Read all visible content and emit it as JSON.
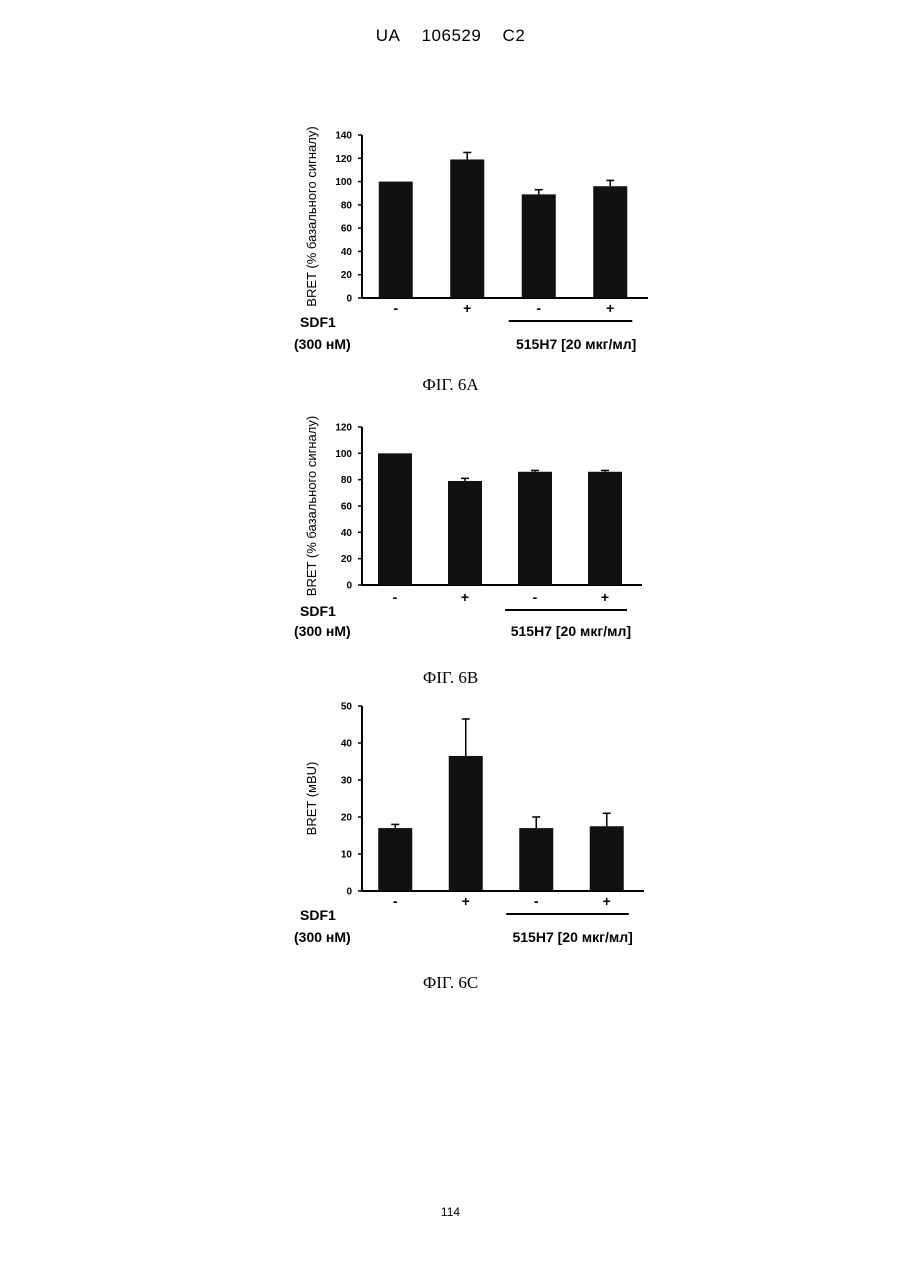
{
  "header": {
    "country": "UA",
    "number": "106529",
    "kind": "C2"
  },
  "footer": {
    "page_number": "114"
  },
  "chart_data": [
    {
      "type": "bar",
      "caption": "ФІГ. 6А",
      "ylabel": "BRET (% базального сигналу)",
      "ylim": [
        0,
        140
      ],
      "yticks": [
        "0",
        "20",
        "40",
        "60",
        "80",
        "100",
        "120",
        "140"
      ],
      "categories": [
        "-",
        "+",
        "-",
        "+"
      ],
      "values": [
        100,
        119,
        89,
        96
      ],
      "errors": [
        0,
        6,
        4,
        5
      ],
      "row_label_top": "SDF1",
      "row_label_bottom": "(300 нМ)",
      "bracket_label": "515H7 [20 мкг/мл]"
    },
    {
      "type": "bar",
      "caption": "ФІГ. 6В",
      "ylabel": "BRET (% базального сигналу)",
      "ylim": [
        0,
        120
      ],
      "yticks": [
        "0",
        "20",
        "40",
        "60",
        "80",
        "100",
        "120"
      ],
      "categories": [
        "-",
        "+",
        "-",
        "+"
      ],
      "values": [
        100,
        79,
        86,
        86
      ],
      "errors": [
        0,
        2,
        1,
        1
      ],
      "row_label_top": "SDF1",
      "row_label_bottom": "(300 нМ)",
      "bracket_label": "515H7 [20 мкг/мл]"
    },
    {
      "type": "bar",
      "caption": "ФІГ. 6С",
      "ylabel": "BRET (мBU)",
      "ylim": [
        0,
        50
      ],
      "yticks": [
        "0",
        "10",
        "20",
        "30",
        "40",
        "50"
      ],
      "categories": [
        "-",
        "+",
        "-",
        "+"
      ],
      "values": [
        17,
        36.5,
        17,
        17.5
      ],
      "errors": [
        1,
        10,
        3,
        3.5
      ],
      "row_label_top": "SDF1",
      "row_label_bottom": "(300 нМ)",
      "bracket_label": "515H7 [20 мкг/мл]"
    }
  ]
}
